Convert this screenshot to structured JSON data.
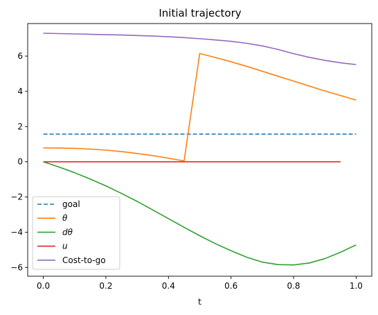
{
  "chart_data": {
    "type": "line",
    "title": "Initial trajectory",
    "xlabel": "t",
    "ylabel": "",
    "xlim": [
      -0.05,
      1.05
    ],
    "ylim": [
      -6.5,
      7.85
    ],
    "xticks": [
      0.0,
      0.2,
      0.4,
      0.6,
      0.8,
      1.0
    ],
    "xtick_labels": [
      "0.0",
      "0.2",
      "0.4",
      "0.6",
      "0.8",
      "1.0"
    ],
    "yticks": [
      -6,
      -4,
      -2,
      0,
      2,
      4,
      6
    ],
    "ytick_labels": [
      "−6",
      "−4",
      "−2",
      "0",
      "2",
      "4",
      "6"
    ],
    "grid": false,
    "legend_position": "lower-left",
    "series": [
      {
        "name": "goal",
        "color": "#1f77b4",
        "dash": true,
        "x": [
          0.0,
          1.0
        ],
        "y": [
          1.5708,
          1.5708
        ]
      },
      {
        "name": "θ",
        "color": "#ff7f0e",
        "dash": false,
        "x": [
          0.0,
          0.05,
          0.1,
          0.15,
          0.2,
          0.25,
          0.3,
          0.35,
          0.4,
          0.45,
          0.5,
          0.55,
          0.6,
          0.65,
          0.7,
          0.75,
          0.8,
          0.85,
          0.9,
          0.95,
          1.0
        ],
        "y": [
          0.79,
          0.78,
          0.76,
          0.72,
          0.66,
          0.58,
          0.47,
          0.35,
          0.2,
          0.05,
          6.15,
          5.92,
          5.68,
          5.42,
          5.14,
          4.86,
          4.58,
          4.3,
          4.02,
          3.76,
          3.5
        ]
      },
      {
        "name": "dθ",
        "color": "#2ca02c",
        "dash": false,
        "x": [
          0.0,
          0.05,
          0.1,
          0.15,
          0.2,
          0.25,
          0.3,
          0.35,
          0.4,
          0.45,
          0.5,
          0.55,
          0.6,
          0.65,
          0.7,
          0.75,
          0.8,
          0.85,
          0.9,
          0.95,
          1.0
        ],
        "y": [
          0.0,
          -0.3,
          -0.62,
          -0.98,
          -1.37,
          -1.8,
          -2.25,
          -2.74,
          -3.23,
          -3.72,
          -4.2,
          -4.65,
          -5.05,
          -5.42,
          -5.7,
          -5.84,
          -5.86,
          -5.75,
          -5.5,
          -5.14,
          -4.72
        ]
      },
      {
        "name": "u",
        "color": "#d62728",
        "dash": false,
        "x": [
          0.0,
          0.95
        ],
        "y": [
          0.0,
          0.0
        ]
      },
      {
        "name": "Cost-to-go",
        "color": "#9467bd",
        "dash": false,
        "x": [
          0.0,
          0.05,
          0.1,
          0.15,
          0.2,
          0.25,
          0.3,
          0.35,
          0.4,
          0.45,
          0.5,
          0.55,
          0.6,
          0.65,
          0.7,
          0.75,
          0.8,
          0.85,
          0.9,
          0.95,
          1.0
        ],
        "y": [
          7.3,
          7.28,
          7.26,
          7.24,
          7.22,
          7.2,
          7.17,
          7.14,
          7.1,
          7.05,
          6.99,
          6.92,
          6.84,
          6.73,
          6.58,
          6.38,
          6.14,
          5.93,
          5.76,
          5.62,
          5.52
        ]
      }
    ]
  }
}
